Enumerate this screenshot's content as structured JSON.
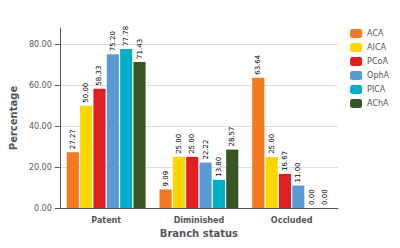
{
  "chart_data": {
    "type": "bar",
    "categories": [
      "Patent",
      "Diminished",
      "Occluded"
    ],
    "series": [
      {
        "name": "ACA",
        "color": "#F47920",
        "values": [
          27.27,
          9.09,
          63.64
        ],
        "value_labels": [
          "27.27",
          "9.09",
          "63.64"
        ]
      },
      {
        "name": "AICA",
        "color": "#FFD700",
        "values": [
          50.0,
          25.0,
          25.0
        ],
        "value_labels": [
          "50.00",
          "25.00",
          "25.00"
        ]
      },
      {
        "name": "PCoA",
        "color": "#E02020",
        "values": [
          58.33,
          25.0,
          16.67
        ],
        "value_labels": [
          "58.33",
          "25.00",
          "16.67"
        ]
      },
      {
        "name": "OphA",
        "color": "#5B9BD5",
        "values": [
          75.2,
          22.22,
          11.0
        ],
        "value_labels": [
          "75.20",
          "22.22",
          "11.00"
        ]
      },
      {
        "name": "PICA",
        "color": "#00B0C8",
        "values": [
          77.78,
          13.8,
          0.0
        ],
        "value_labels": [
          "77.78",
          "13.80",
          "0.00"
        ]
      },
      {
        "name": "AChA",
        "color": "#375623",
        "values": [
          71.43,
          28.57,
          0.0
        ],
        "value_labels": [
          "71.43",
          "28.57",
          "0.00"
        ]
      }
    ],
    "xlabel": "Branch status",
    "ylabel": "Percentage",
    "ylim": [
      0,
      88
    ],
    "yticks": [
      {
        "value": 0,
        "label": "0.00"
      },
      {
        "value": 20,
        "label": "20.00"
      },
      {
        "value": 40,
        "label": "40.00"
      },
      {
        "value": 60,
        "label": "60.00"
      },
      {
        "value": 80,
        "label": "80.00"
      }
    ],
    "grid": true,
    "legend": "right",
    "data_labels": true
  }
}
